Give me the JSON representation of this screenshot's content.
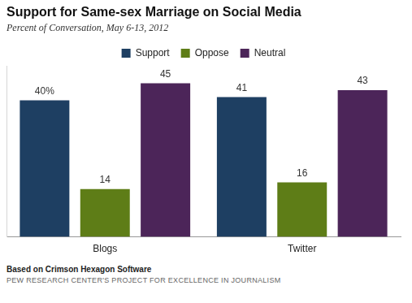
{
  "chart_data": {
    "type": "bar",
    "title": "Support for Same-sex Marriage on Social Media",
    "subtitle": "Percent of Conversation, May 6-13, 2012",
    "categories": [
      "Blogs",
      "Twitter"
    ],
    "series": [
      {
        "name": "Support",
        "color": "#1e3f62",
        "values": [
          40,
          41
        ],
        "value_labels": [
          "40%",
          "41"
        ]
      },
      {
        "name": "Oppose",
        "color": "#5e7d17",
        "values": [
          14,
          16
        ]
      },
      {
        "name": "Neutral",
        "color": "#4c2559",
        "values": [
          45,
          43
        ]
      }
    ],
    "ylim": [
      0,
      50
    ],
    "grid": false,
    "legend": "top",
    "data_labels": true,
    "tick_labels": "x",
    "note": "Based on Crimson Hexagon Software",
    "source": "PEW RESEARCH CENTER'S PROJECT FOR EXCELLENCE IN JOURNALISM"
  }
}
